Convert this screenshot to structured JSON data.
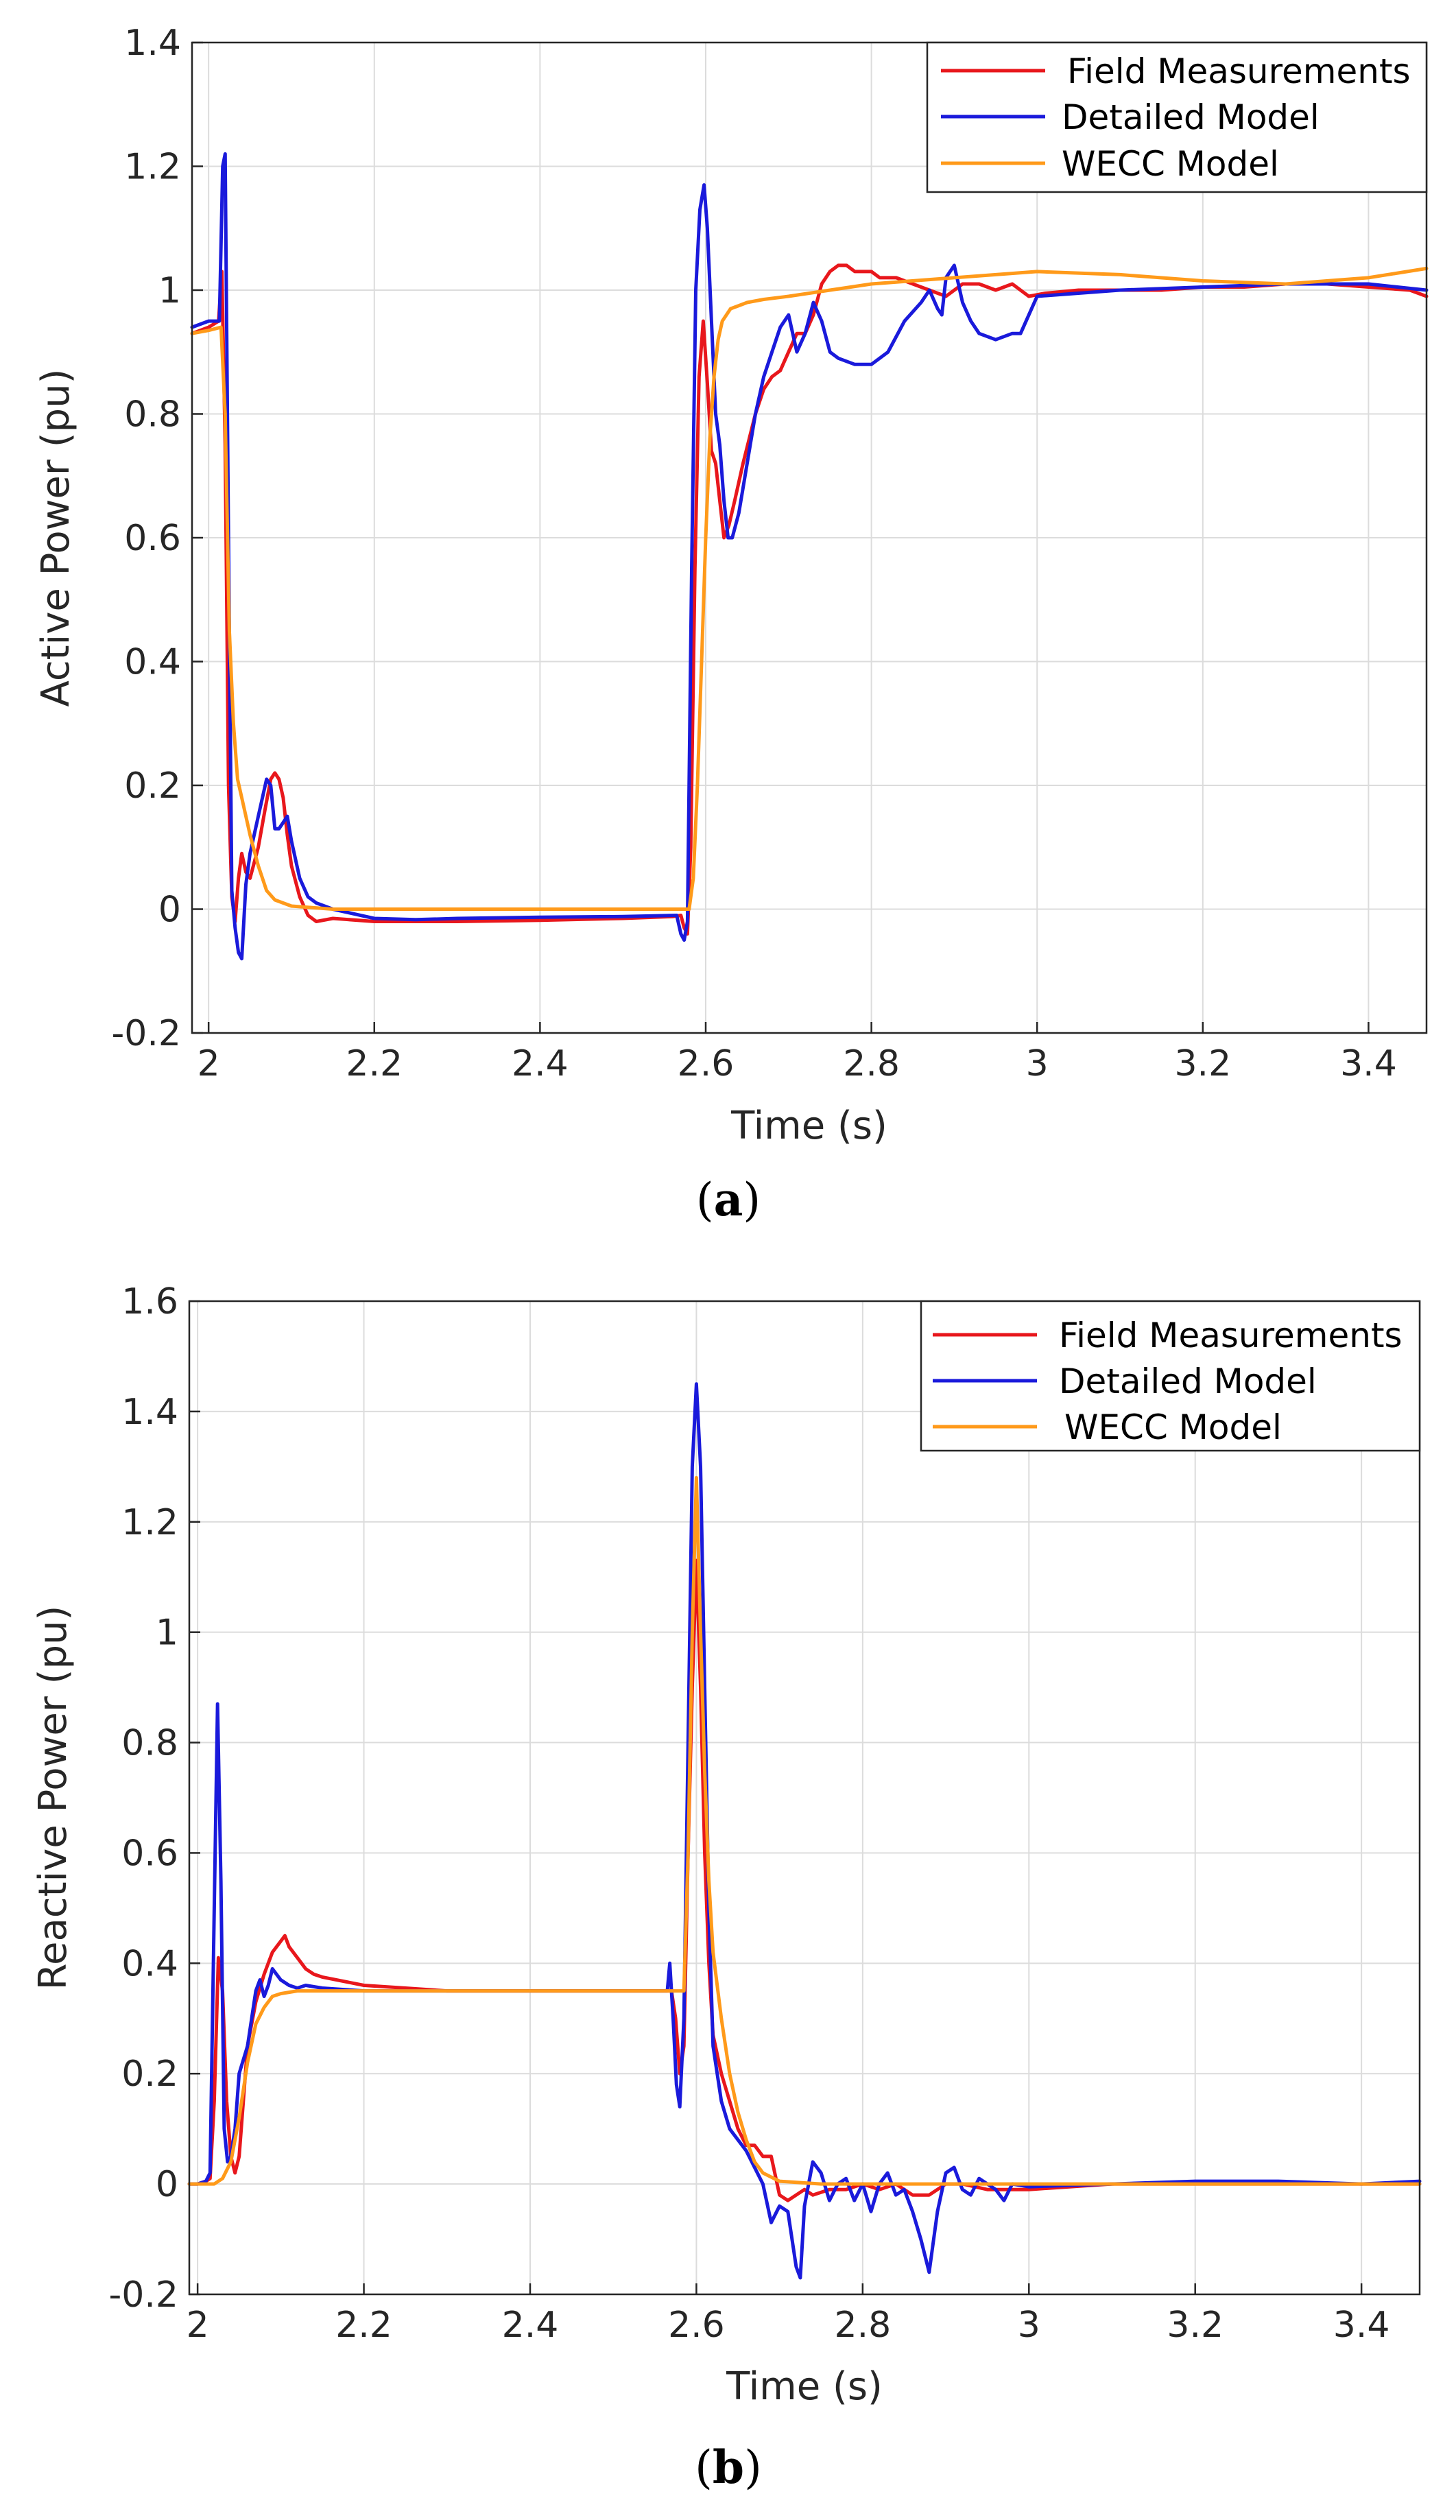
{
  "colors": {
    "field": "#e8171c",
    "detailed": "#1a1adb",
    "wecc": "#ff9a1a"
  },
  "legend": {
    "field": "Field Measurements",
    "detailed": "Detailed Model",
    "wecc": "WECC Model"
  },
  "chart_data": [
    {
      "type": "line",
      "caption_open": "(",
      "caption_letter": "a",
      "caption_close": ")",
      "xlabel": "Time (s)",
      "ylabel": "Active Power (pu)",
      "xlim": [
        1.98,
        3.47
      ],
      "ylim": [
        -0.2,
        1.4
      ],
      "xticks": [
        2,
        2.2,
        2.4,
        2.6,
        2.8,
        3,
        3.2,
        3.4
      ],
      "xtick_labels": [
        "2",
        "2.2",
        "2.4",
        "2.6",
        "2.8",
        "3",
        "3.2",
        "3.4"
      ],
      "yticks": [
        -0.2,
        0,
        0.2,
        0.4,
        0.6,
        0.8,
        1,
        1.2,
        1.4
      ],
      "ytick_labels": [
        "-0.2",
        "0",
        "0.2",
        "0.4",
        "0.6",
        "0.8",
        "1",
        "1.2",
        "1.4"
      ],
      "legend_position": "top-right",
      "grid": true,
      "series": [
        {
          "name": "Field Measurements",
          "color_key": "field",
          "x": [
            1.98,
            2.0,
            2.012,
            2.016,
            2.02,
            2.024,
            2.028,
            2.032,
            2.036,
            2.04,
            2.045,
            2.05,
            2.06,
            2.068,
            2.075,
            2.08,
            2.085,
            2.09,
            2.095,
            2.1,
            2.11,
            2.12,
            2.13,
            2.15,
            2.2,
            2.25,
            2.3,
            2.4,
            2.5,
            2.56,
            2.57,
            2.574,
            2.578,
            2.582,
            2.587,
            2.592,
            2.597,
            2.602,
            2.607,
            2.612,
            2.617,
            2.622,
            2.628,
            2.635,
            2.645,
            2.66,
            2.67,
            2.68,
            2.69,
            2.7,
            2.71,
            2.72,
            2.73,
            2.74,
            2.75,
            2.76,
            2.77,
            2.78,
            2.79,
            2.8,
            2.81,
            2.83,
            2.85,
            2.87,
            2.89,
            2.91,
            2.93,
            2.95,
            2.97,
            2.99,
            3.01,
            3.05,
            3.1,
            3.15,
            3.2,
            3.25,
            3.3,
            3.35,
            3.4,
            3.45,
            3.47
          ],
          "y": [
            0.93,
            0.94,
            0.95,
            1.03,
            0.75,
            0.2,
            0.02,
            -0.02,
            0.05,
            0.09,
            0.06,
            0.05,
            0.1,
            0.16,
            0.21,
            0.22,
            0.21,
            0.18,
            0.12,
            0.07,
            0.02,
            -0.01,
            -0.02,
            -0.015,
            -0.02,
            -0.02,
            -0.02,
            -0.018,
            -0.015,
            -0.012,
            -0.01,
            -0.03,
            -0.04,
            0.1,
            0.55,
            0.86,
            0.95,
            0.85,
            0.74,
            0.72,
            0.66,
            0.6,
            0.62,
            0.66,
            0.72,
            0.8,
            0.84,
            0.86,
            0.87,
            0.9,
            0.93,
            0.93,
            0.96,
            1.01,
            1.03,
            1.04,
            1.04,
            1.03,
            1.03,
            1.03,
            1.02,
            1.02,
            1.01,
            1.0,
            0.99,
            1.01,
            1.01,
            1.0,
            1.01,
            0.99,
            0.995,
            1.0,
            1.0,
            1.0,
            1.005,
            1.005,
            1.01,
            1.01,
            1.005,
            1.0,
            0.99
          ]
        },
        {
          "name": "Detailed Model",
          "color_key": "detailed",
          "x": [
            1.98,
            2.0,
            2.01,
            2.013,
            2.017,
            2.02,
            2.024,
            2.028,
            2.032,
            2.036,
            2.04,
            2.045,
            2.05,
            2.06,
            2.07,
            2.075,
            2.08,
            2.085,
            2.09,
            2.095,
            2.1,
            2.105,
            2.11,
            2.12,
            2.13,
            2.15,
            2.2,
            2.25,
            2.3,
            2.4,
            2.5,
            2.565,
            2.57,
            2.574,
            2.578,
            2.583,
            2.588,
            2.593,
            2.598,
            2.602,
            2.607,
            2.612,
            2.617,
            2.622,
            2.627,
            2.632,
            2.64,
            2.65,
            2.66,
            2.67,
            2.68,
            2.69,
            2.7,
            2.71,
            2.72,
            2.73,
            2.74,
            2.75,
            2.76,
            2.78,
            2.8,
            2.82,
            2.84,
            2.86,
            2.87,
            2.88,
            2.885,
            2.89,
            2.9,
            2.91,
            2.92,
            2.93,
            2.95,
            2.97,
            2.98,
            3.0,
            3.05,
            3.1,
            3.2,
            3.3,
            3.4,
            3.47
          ],
          "y": [
            0.94,
            0.95,
            0.95,
            0.95,
            1.2,
            1.22,
            0.6,
            0.03,
            -0.03,
            -0.07,
            -0.08,
            0.04,
            0.09,
            0.15,
            0.21,
            0.2,
            0.13,
            0.13,
            0.14,
            0.15,
            0.11,
            0.08,
            0.05,
            0.02,
            0.01,
            0.0,
            -0.015,
            -0.017,
            -0.015,
            -0.013,
            -0.012,
            -0.01,
            -0.04,
            -0.05,
            -0.02,
            0.55,
            1.0,
            1.13,
            1.17,
            1.1,
            0.95,
            0.8,
            0.75,
            0.66,
            0.6,
            0.6,
            0.64,
            0.72,
            0.8,
            0.86,
            0.9,
            0.94,
            0.96,
            0.9,
            0.93,
            0.98,
            0.95,
            0.9,
            0.89,
            0.88,
            0.88,
            0.9,
            0.95,
            0.98,
            1.0,
            0.97,
            0.96,
            1.02,
            1.04,
            0.98,
            0.95,
            0.93,
            0.92,
            0.93,
            0.93,
            0.99,
            0.995,
            1.0,
            1.005,
            1.01,
            1.01,
            1.0
          ]
        },
        {
          "name": "WECC Model",
          "color_key": "wecc",
          "x": [
            1.98,
            2.0,
            2.015,
            2.02,
            2.025,
            2.03,
            2.035,
            2.04,
            2.05,
            2.06,
            2.07,
            2.08,
            2.1,
            2.15,
            2.2,
            2.3,
            2.4,
            2.5,
            2.58,
            2.585,
            2.59,
            2.595,
            2.6,
            2.605,
            2.61,
            2.615,
            2.62,
            2.625,
            2.63,
            2.64,
            2.65,
            2.67,
            2.7,
            2.75,
            2.8,
            2.9,
            3.0,
            3.1,
            3.2,
            3.3,
            3.4,
            3.47
          ],
          "y": [
            0.93,
            0.935,
            0.94,
            0.8,
            0.45,
            0.3,
            0.21,
            0.18,
            0.12,
            0.07,
            0.03,
            0.015,
            0.005,
            0.0,
            0.0,
            0.0,
            0.0,
            0.0,
            0.0,
            0.05,
            0.2,
            0.4,
            0.6,
            0.76,
            0.86,
            0.92,
            0.95,
            0.96,
            0.97,
            0.975,
            0.98,
            0.985,
            0.99,
            1.0,
            1.01,
            1.02,
            1.03,
            1.025,
            1.015,
            1.01,
            1.02,
            1.035
          ]
        }
      ]
    },
    {
      "type": "line",
      "caption_open": "(",
      "caption_letter": "b",
      "caption_close": ")",
      "xlabel": "Time (s)",
      "ylabel": "Reactive Power (pu)",
      "xlim": [
        1.99,
        3.47
      ],
      "ylim": [
        -0.2,
        1.6
      ],
      "xticks": [
        2,
        2.2,
        2.4,
        2.6,
        2.8,
        3,
        3.2,
        3.4
      ],
      "xtick_labels": [
        "2",
        "2.2",
        "2.4",
        "2.6",
        "2.8",
        "3",
        "3.2",
        "3.4"
      ],
      "yticks": [
        -0.2,
        0,
        0.2,
        0.4,
        0.6,
        0.8,
        1,
        1.2,
        1.4,
        1.6
      ],
      "ytick_labels": [
        "-0.2",
        "0",
        "0.2",
        "0.4",
        "0.6",
        "0.8",
        "1",
        "1.2",
        "1.4",
        "1.6"
      ],
      "legend_position": "top-right",
      "grid": true,
      "series": [
        {
          "name": "Field Measurements",
          "color_key": "field",
          "x": [
            1.99,
            2.0,
            2.01,
            2.015,
            2.02,
            2.025,
            2.03,
            2.035,
            2.04,
            2.045,
            2.05,
            2.055,
            2.06,
            2.07,
            2.08,
            2.09,
            2.1,
            2.105,
            2.11,
            2.12,
            2.13,
            2.14,
            2.15,
            2.2,
            2.25,
            2.3,
            2.4,
            2.5,
            2.56,
            2.57,
            2.575,
            2.58,
            2.585,
            2.59,
            2.595,
            2.6,
            2.605,
            2.61,
            2.615,
            2.62,
            2.63,
            2.64,
            2.65,
            2.66,
            2.67,
            2.68,
            2.69,
            2.7,
            2.71,
            2.72,
            2.73,
            2.74,
            2.76,
            2.78,
            2.8,
            2.82,
            2.84,
            2.86,
            2.88,
            2.9,
            2.92,
            2.95,
            3.0,
            3.1,
            3.2,
            3.3,
            3.4,
            3.47
          ],
          "y": [
            0.0,
            0.0,
            0.005,
            0.01,
            0.15,
            0.41,
            0.35,
            0.15,
            0.05,
            0.02,
            0.05,
            0.15,
            0.25,
            0.33,
            0.38,
            0.42,
            0.44,
            0.45,
            0.43,
            0.41,
            0.39,
            0.38,
            0.375,
            0.36,
            0.355,
            0.35,
            0.35,
            0.35,
            0.35,
            0.35,
            0.3,
            0.2,
            0.25,
            0.6,
            0.9,
            1.13,
            0.9,
            0.6,
            0.4,
            0.27,
            0.2,
            0.15,
            0.1,
            0.07,
            0.07,
            0.05,
            0.05,
            -0.02,
            -0.03,
            -0.02,
            -0.01,
            -0.02,
            -0.01,
            -0.01,
            0.0,
            -0.01,
            0.0,
            -0.02,
            -0.02,
            0.0,
            0.0,
            -0.01,
            -0.01,
            0.0,
            0.0,
            0.0,
            0.0,
            0.0
          ]
        },
        {
          "name": "Detailed Model",
          "color_key": "detailed",
          "x": [
            1.99,
            2.0,
            2.01,
            2.015,
            2.02,
            2.024,
            2.028,
            2.032,
            2.036,
            2.04,
            2.045,
            2.05,
            2.06,
            2.07,
            2.075,
            2.08,
            2.085,
            2.09,
            2.1,
            2.11,
            2.12,
            2.13,
            2.15,
            2.2,
            2.3,
            2.4,
            2.5,
            2.565,
            2.568,
            2.572,
            2.576,
            2.58,
            2.585,
            2.59,
            2.595,
            2.6,
            2.605,
            2.61,
            2.615,
            2.62,
            2.63,
            2.64,
            2.65,
            2.66,
            2.67,
            2.68,
            2.69,
            2.7,
            2.71,
            2.72,
            2.725,
            2.73,
            2.74,
            2.75,
            2.76,
            2.77,
            2.78,
            2.79,
            2.8,
            2.81,
            2.82,
            2.83,
            2.84,
            2.85,
            2.86,
            2.87,
            2.88,
            2.89,
            2.9,
            2.91,
            2.92,
            2.93,
            2.94,
            2.95,
            2.96,
            2.97,
            2.98,
            3.0,
            3.1,
            3.2,
            3.3,
            3.4,
            3.47
          ],
          "y": [
            0.0,
            0.0,
            0.005,
            0.02,
            0.5,
            0.87,
            0.55,
            0.1,
            0.04,
            0.05,
            0.1,
            0.2,
            0.25,
            0.35,
            0.37,
            0.34,
            0.36,
            0.39,
            0.37,
            0.36,
            0.355,
            0.36,
            0.355,
            0.35,
            0.35,
            0.35,
            0.35,
            0.35,
            0.4,
            0.3,
            0.18,
            0.14,
            0.3,
            0.8,
            1.3,
            1.45,
            1.3,
            0.9,
            0.5,
            0.25,
            0.15,
            0.1,
            0.08,
            0.06,
            0.03,
            0.0,
            -0.07,
            -0.04,
            -0.05,
            -0.15,
            -0.17,
            -0.04,
            0.04,
            0.02,
            -0.03,
            0.0,
            0.01,
            -0.03,
            0.0,
            -0.05,
            0.0,
            0.02,
            -0.02,
            -0.01,
            -0.05,
            -0.1,
            -0.16,
            -0.05,
            0.02,
            0.03,
            -0.01,
            -0.02,
            0.01,
            0.0,
            -0.01,
            -0.03,
            0.0,
            -0.005,
            0.0,
            0.005,
            0.005,
            0.0,
            0.005
          ]
        },
        {
          "name": "WECC Model",
          "color_key": "wecc",
          "x": [
            1.99,
            2.0,
            2.02,
            2.03,
            2.04,
            2.05,
            2.06,
            2.07,
            2.08,
            2.09,
            2.1,
            2.12,
            2.15,
            2.2,
            2.3,
            2.4,
            2.5,
            2.585,
            2.59,
            2.595,
            2.6,
            2.605,
            2.61,
            2.615,
            2.62,
            2.63,
            2.64,
            2.65,
            2.66,
            2.67,
            2.68,
            2.7,
            2.75,
            2.8,
            2.9,
            3.0,
            3.1,
            3.2,
            3.3,
            3.4,
            3.47
          ],
          "y": [
            0.0,
            0.0,
            0.0,
            0.01,
            0.04,
            0.12,
            0.22,
            0.29,
            0.32,
            0.34,
            0.345,
            0.35,
            0.35,
            0.35,
            0.35,
            0.35,
            0.35,
            0.35,
            0.6,
            1.0,
            1.28,
            1.0,
            0.75,
            0.55,
            0.42,
            0.3,
            0.2,
            0.13,
            0.08,
            0.04,
            0.02,
            0.005,
            0.0,
            0.0,
            0.0,
            0.0,
            0.0,
            0.0,
            0.0,
            0.0,
            0.0
          ]
        }
      ]
    }
  ]
}
